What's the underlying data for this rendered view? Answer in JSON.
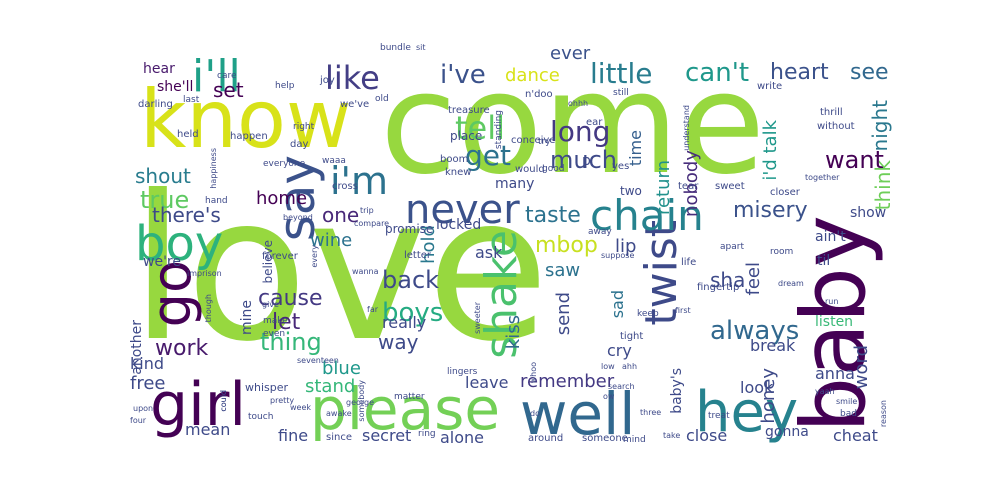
{
  "words": [
    {
      "text": "love",
      "color": "#97d83f"
    },
    {
      "text": "come",
      "color": "#97d83f"
    },
    {
      "text": "baby",
      "color": "#440154"
    },
    {
      "text": "know",
      "color": "#d8e219"
    },
    {
      "text": "please",
      "color": "#73d056"
    },
    {
      "text": "girl",
      "color": "#440154"
    },
    {
      "text": "well",
      "color": "#31688e"
    },
    {
      "text": "hey",
      "color": "#26828e"
    },
    {
      "text": "say",
      "color": "#3b528b"
    },
    {
      "text": "go",
      "color": "#440154"
    },
    {
      "text": "boy",
      "color": "#2db27d"
    },
    {
      "text": "i'll",
      "color": "#1fa088"
    },
    {
      "text": "shake",
      "color": "#4ac16d"
    },
    {
      "text": "twist",
      "color": "#3e4a89"
    },
    {
      "text": "chain",
      "color": "#26828e"
    },
    {
      "text": "never",
      "color": "#3b528b"
    },
    {
      "text": "i'm",
      "color": "#2c728e"
    },
    {
      "text": "like",
      "color": "#433e85"
    },
    {
      "text": "little",
      "color": "#287c8e"
    },
    {
      "text": "i've",
      "color": "#3b528b"
    },
    {
      "text": "can't",
      "color": "#1f988b"
    },
    {
      "text": "heart",
      "color": "#3b528b"
    },
    {
      "text": "see",
      "color": "#31688e"
    },
    {
      "text": "tell",
      "color": "#5ec962"
    },
    {
      "text": "get",
      "color": "#2c728e"
    },
    {
      "text": "long",
      "color": "#443983"
    },
    {
      "text": "much",
      "color": "#3e4a89"
    },
    {
      "text": "want",
      "color": "#440154"
    },
    {
      "text": "misery",
      "color": "#3b528b"
    },
    {
      "text": "always",
      "color": "#31688e"
    },
    {
      "text": "boys",
      "color": "#25ab82"
    },
    {
      "text": "mbop",
      "color": "#c8e020"
    },
    {
      "text": "taste",
      "color": "#2c728e"
    },
    {
      "text": "work",
      "color": "#481a6c"
    },
    {
      "text": "cause",
      "color": "#443983"
    },
    {
      "text": "thing",
      "color": "#35b779"
    },
    {
      "text": "let",
      "color": "#482878"
    },
    {
      "text": "back",
      "color": "#3e4a89"
    },
    {
      "text": "true",
      "color": "#5ec962"
    },
    {
      "text": "shout",
      "color": "#287c8e"
    },
    {
      "text": "there's",
      "color": "#3e4a89"
    },
    {
      "text": "dance",
      "color": "#d8e219"
    },
    {
      "text": "ever",
      "color": "#3b528b"
    },
    {
      "text": "i'd talk",
      "color": "#1f988b"
    },
    {
      "text": "night",
      "color": "#2a788e"
    },
    {
      "text": "think",
      "color": "#6ece58"
    },
    {
      "text": "return",
      "color": "#21918c"
    },
    {
      "text": "time",
      "color": "#355f8d"
    },
    {
      "text": "nobody",
      "color": "#472d7b"
    },
    {
      "text": "hold",
      "color": "#2a788e"
    },
    {
      "text": "one",
      "color": "#482878"
    },
    {
      "text": "wine",
      "color": "#2c728e"
    },
    {
      "text": "home",
      "color": "#440154"
    },
    {
      "text": "set",
      "color": "#440154"
    },
    {
      "text": "hear",
      "color": "#481a6c"
    },
    {
      "text": "she'll",
      "color": "#440154"
    },
    {
      "text": "feel",
      "color": "#3e4a89"
    },
    {
      "text": "sha",
      "color": "#3e4a89"
    },
    {
      "text": "saw",
      "color": "#2c728e"
    },
    {
      "text": "ask",
      "color": "#3e4a89"
    },
    {
      "text": "lip",
      "color": "#3e4a89"
    },
    {
      "text": "kiss",
      "color": "#31688e"
    },
    {
      "text": "send",
      "color": "#3e4a89"
    },
    {
      "text": "sad",
      "color": "#2c728e"
    },
    {
      "text": "word",
      "color": "#3e4a89"
    },
    {
      "text": "break",
      "color": "#3e4a89"
    },
    {
      "text": "listen",
      "color": "#38b977"
    },
    {
      "text": "anna",
      "color": "#3e4a89"
    },
    {
      "text": "honey",
      "color": "#3e4a89"
    },
    {
      "text": "look",
      "color": "#3e4a89"
    },
    {
      "text": "remember",
      "color": "#443983"
    },
    {
      "text": "leave",
      "color": "#3e4a89"
    },
    {
      "text": "blue",
      "color": "#1f988b"
    },
    {
      "text": "stand",
      "color": "#35b779"
    },
    {
      "text": "free",
      "color": "#3e4a89"
    },
    {
      "text": "kind",
      "color": "#3e4a89"
    },
    {
      "text": "mean",
      "color": "#3e4a89"
    },
    {
      "text": "fine",
      "color": "#3e4a89"
    },
    {
      "text": "secret",
      "color": "#3e4a89"
    },
    {
      "text": "alone",
      "color": "#3e4a89"
    },
    {
      "text": "close",
      "color": "#3e4a89"
    },
    {
      "text": "gonna",
      "color": "#3e4a89"
    },
    {
      "text": "cheat",
      "color": "#3e4a89"
    },
    {
      "text": "cry",
      "color": "#3e4a89"
    },
    {
      "text": "really",
      "color": "#3e4a89"
    },
    {
      "text": "way",
      "color": "#3e4a89"
    },
    {
      "text": "mine",
      "color": "#3e4a89"
    },
    {
      "text": "another",
      "color": "#3e4a89"
    },
    {
      "text": "we're",
      "color": "#3e4a89"
    },
    {
      "text": "believe",
      "color": "#3e4a89"
    },
    {
      "text": "many",
      "color": "#3e4a89"
    },
    {
      "text": "locked",
      "color": "#3e4a89"
    },
    {
      "text": "til",
      "color": "#3e4a89"
    },
    {
      "text": "ain't",
      "color": "#3e4a89"
    },
    {
      "text": "show",
      "color": "#3e4a89"
    },
    {
      "text": "p",
      "color": "#3e4a89"
    },
    {
      "text": "baby's",
      "color": "#3e4a89"
    },
    {
      "text": "would",
      "color": "#3e4a89"
    },
    {
      "text": "bundle",
      "color": "#3e4a89"
    },
    {
      "text": "sit",
      "color": "#3e4a89"
    },
    {
      "text": "darling",
      "color": "#3e4a89"
    },
    {
      "text": "care",
      "color": "#3e4a89"
    },
    {
      "text": "joy",
      "color": "#3e4a89"
    },
    {
      "text": "help",
      "color": "#3e4a89"
    },
    {
      "text": "old",
      "color": "#3e4a89"
    },
    {
      "text": "we've",
      "color": "#3e4a89"
    },
    {
      "text": "last",
      "color": "#3e4a89"
    },
    {
      "text": "treasure",
      "color": "#3e4a89"
    },
    {
      "text": "standing",
      "color": "#3e4a89"
    },
    {
      "text": "n'doo",
      "color": "#3e4a89"
    },
    {
      "text": "conceive",
      "color": "#3e4a89"
    },
    {
      "text": "still",
      "color": "#3e4a89"
    },
    {
      "text": "write",
      "color": "#3e4a89"
    },
    {
      "text": "thrill",
      "color": "#3e4a89"
    },
    {
      "text": "without",
      "color": "#3e4a89"
    },
    {
      "text": "held",
      "color": "#3e4a89"
    },
    {
      "text": "happen",
      "color": "#3e4a89"
    },
    {
      "text": "right",
      "color": "#3e4a89"
    },
    {
      "text": "happiness",
      "color": "#3e4a89"
    },
    {
      "text": "day",
      "color": "#3e4a89"
    },
    {
      "text": "everyone",
      "color": "#3e4a89"
    },
    {
      "text": "waaa",
      "color": "#3e4a89"
    },
    {
      "text": "promise",
      "color": "#3e4a89"
    },
    {
      "text": "boom",
      "color": "#3e4a89"
    },
    {
      "text": "knew",
      "color": "#3e4a89"
    },
    {
      "text": "place",
      "color": "#3e4a89"
    },
    {
      "text": "ear",
      "color": "#3e4a89"
    },
    {
      "text": "try",
      "color": "#3e4a89"
    },
    {
      "text": "good",
      "color": "#3e4a89"
    },
    {
      "text": "yes",
      "color": "#3e4a89"
    },
    {
      "text": "two",
      "color": "#3e4a89"
    },
    {
      "text": "tear",
      "color": "#3e4a89"
    },
    {
      "text": "sweet",
      "color": "#3e4a89"
    },
    {
      "text": "closer",
      "color": "#3e4a89"
    },
    {
      "text": "together",
      "color": "#3e4a89"
    },
    {
      "text": "cross",
      "color": "#3e4a89"
    },
    {
      "text": "hand",
      "color": "#3e4a89"
    },
    {
      "text": "beyond",
      "color": "#3e4a89"
    },
    {
      "text": "trip",
      "color": "#3e4a89"
    },
    {
      "text": "compare",
      "color": "#3e4a89"
    },
    {
      "text": "away",
      "color": "#3e4a89"
    },
    {
      "text": "apart",
      "color": "#3e4a89"
    },
    {
      "text": "room",
      "color": "#3e4a89"
    },
    {
      "text": "forever",
      "color": "#3e4a89"
    },
    {
      "text": "letter",
      "color": "#3e4a89"
    },
    {
      "text": "imprison",
      "color": "#3e4a89"
    },
    {
      "text": "every",
      "color": "#3e4a89"
    },
    {
      "text": "wanna",
      "color": "#3e4a89"
    },
    {
      "text": "sweeter",
      "color": "#3e4a89"
    },
    {
      "text": "life",
      "color": "#3e4a89"
    },
    {
      "text": "dream",
      "color": "#3e4a89"
    },
    {
      "text": "fingertip",
      "color": "#3e4a89"
    },
    {
      "text": "first",
      "color": "#3e4a89"
    },
    {
      "text": "run",
      "color": "#3e4a89"
    },
    {
      "text": "keep",
      "color": "#3e4a89"
    },
    {
      "text": "give",
      "color": "#3e4a89"
    },
    {
      "text": "make",
      "color": "#3e4a89"
    },
    {
      "text": "even",
      "color": "#3e4a89"
    },
    {
      "text": "far",
      "color": "#3e4a89"
    },
    {
      "text": "tight",
      "color": "#3e4a89"
    },
    {
      "text": "seventeen",
      "color": "#3e4a89"
    },
    {
      "text": "lingers",
      "color": "#3e4a89"
    },
    {
      "text": "whoo",
      "color": "#3e4a89"
    },
    {
      "text": "low",
      "color": "#3e4a89"
    },
    {
      "text": "ahh",
      "color": "#3e4a89"
    },
    {
      "text": "whisper",
      "color": "#3e4a89"
    },
    {
      "text": "somebody",
      "color": "#3e4a89"
    },
    {
      "text": "matter",
      "color": "#3e4a89"
    },
    {
      "text": "ow",
      "color": "#3e4a89"
    },
    {
      "text": "pretty",
      "color": "#3e4a89"
    },
    {
      "text": "could",
      "color": "#3e4a89"
    },
    {
      "text": "week",
      "color": "#3e4a89"
    },
    {
      "text": "upon",
      "color": "#3e4a89"
    },
    {
      "text": "four",
      "color": "#3e4a89"
    },
    {
      "text": "touch",
      "color": "#3e4a89"
    },
    {
      "text": "awake",
      "color": "#3e4a89"
    },
    {
      "text": "since",
      "color": "#3e4a89"
    },
    {
      "text": "ring",
      "color": "#3e4a89"
    },
    {
      "text": "do",
      "color": "#3e4a89"
    },
    {
      "text": "around",
      "color": "#3e4a89"
    },
    {
      "text": "someone",
      "color": "#3e4a89"
    },
    {
      "text": "mind",
      "color": "#3e4a89"
    },
    {
      "text": "take",
      "color": "#3e4a89"
    },
    {
      "text": "three",
      "color": "#3e4a89"
    },
    {
      "text": "treat",
      "color": "#3e4a89"
    },
    {
      "text": "yaah",
      "color": "#3e4a89"
    },
    {
      "text": "smile",
      "color": "#3e4a89"
    },
    {
      "text": "bad",
      "color": "#3e4a89"
    },
    {
      "text": "reason",
      "color": "#3e4a89"
    },
    {
      "text": "could",
      "color": "#3e4a89"
    },
    {
      "text": "george",
      "color": "#3e4a89"
    },
    {
      "text": "though",
      "color": "#3e4a89"
    },
    {
      "text": "understand",
      "color": "#3e4a89"
    },
    {
      "text": "suppose",
      "color": "#3e4a89"
    },
    {
      "text": "search",
      "color": "#3e4a89"
    },
    {
      "text": "ohhh",
      "color": "#3e4a89"
    }
  ]
}
